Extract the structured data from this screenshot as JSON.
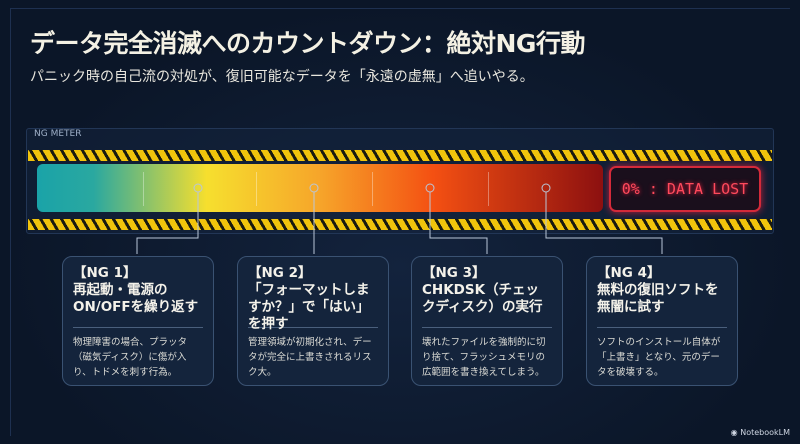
{
  "header": {
    "title": "データ完全消滅へのカウントダウン：絶対NG行動",
    "subtitle": "パニック時の自己流の対処が、復旧可能なデータを「永遠の虚無」へ追いやる。"
  },
  "meter": {
    "label": "NG METER",
    "status": "0% : DATA LOST",
    "gradient_colors": [
      "#1aa3a8",
      "#f6df2e",
      "#f6a52a",
      "#f45012",
      "#8c1010"
    ],
    "alert_color": "#d42a3a"
  },
  "cards": [
    {
      "tag": "【NG 1】",
      "title": "再起動・電源の ON/OFFを繰り返す",
      "body": "物理障害の場合、プラッタ（磁気ディスク）に傷が入り、トドメを刺す行為。"
    },
    {
      "tag": "【NG 2】",
      "title": "「フォーマットしますか？」で「はい」を押す",
      "body": "管理領域が初期化され、データが完全に上書きされるリスク大。"
    },
    {
      "tag": "【NG 3】",
      "title": "CHKDSK（チェックディスク）の実行",
      "body": "壊れたファイルを強制的に切り捨て、フラッシュメモリの広範囲を書き換えてしまう。"
    },
    {
      "tag": "【NG 4】",
      "title": "無料の復旧ソフトを無闇に試す",
      "body": "ソフトのインストール自体が「上書き」となり、元のデータを破壊する。"
    }
  ],
  "footer": {
    "logo": "NotebookLM"
  }
}
